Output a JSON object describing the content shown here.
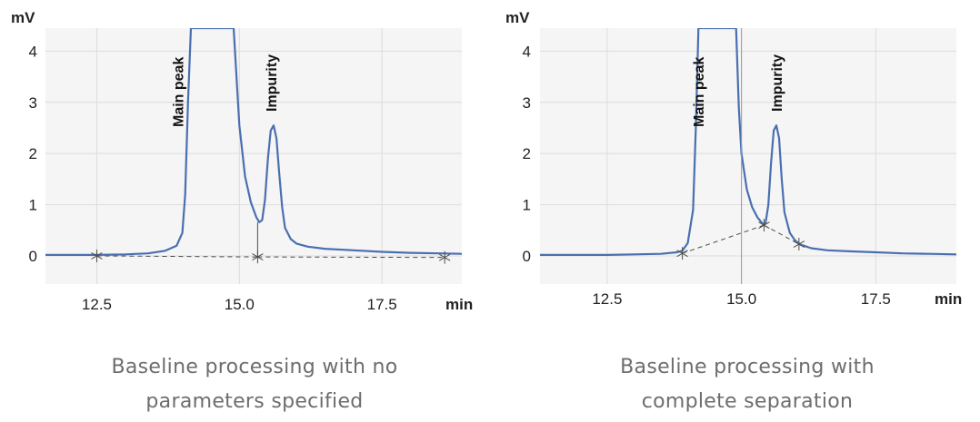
{
  "colors": {
    "plot_background": "#f5f5f5",
    "grid": "#dcdcdc",
    "trace": "#4a6fb0",
    "baseline": "#4d4d4d",
    "axis_text": "#222222",
    "caption_text": "#6d6d6d"
  },
  "chart_data": [
    {
      "type": "line",
      "title": "",
      "ylabel": "mV",
      "xlabel": "min",
      "xlim": [
        11.6,
        18.9
      ],
      "ylim": [
        -0.55,
        4.45
      ],
      "xticks": [
        "12.5",
        "15.0",
        "17.5"
      ],
      "yticks": [
        "0",
        "1",
        "2",
        "3",
        "4"
      ],
      "grid": true,
      "annotations": [
        "Main peak",
        "Impurity"
      ],
      "peaks": {
        "main_peak_time": 14.25,
        "impurity_time": 15.57,
        "impurity_height": 2.55,
        "valley_time": 15.32,
        "valley_height": 0.66
      },
      "baseline_markers": [
        {
          "x": 12.5,
          "y": 0.0
        },
        {
          "x": 15.32,
          "y": -0.02
        },
        {
          "x": 18.6,
          "y": -0.03
        }
      ],
      "series": [
        {
          "x": [
            11.6,
            12.5,
            13.0,
            13.4,
            13.7,
            13.9,
            14.0,
            14.05,
            14.1,
            14.15,
            14.2,
            14.4,
            14.5,
            14.6,
            14.7,
            14.8,
            14.9,
            15.0,
            15.1,
            15.2,
            15.3,
            15.35,
            15.4,
            15.45,
            15.5,
            15.55,
            15.6,
            15.65,
            15.7,
            15.75,
            15.8,
            15.9,
            16.0,
            16.2,
            16.5,
            17.0,
            17.5,
            18.0,
            18.5,
            18.9
          ],
          "y": [
            0.02,
            0.02,
            0.03,
            0.05,
            0.1,
            0.2,
            0.45,
            1.2,
            3.0,
            4.45,
            4.45,
            4.45,
            4.45,
            4.45,
            4.45,
            4.45,
            4.45,
            2.55,
            1.55,
            1.05,
            0.75,
            0.66,
            0.7,
            1.1,
            1.9,
            2.45,
            2.55,
            2.3,
            1.6,
            0.95,
            0.55,
            0.33,
            0.24,
            0.18,
            0.14,
            0.11,
            0.08,
            0.06,
            0.05,
            0.04
          ]
        }
      ]
    },
    {
      "type": "line",
      "title": "",
      "ylabel": "mV",
      "xlabel": "min",
      "xlim": [
        11.25,
        19.0
      ],
      "ylim": [
        -0.55,
        4.45
      ],
      "xticks": [
        "12.5",
        "15.0",
        "17.5"
      ],
      "yticks": [
        "0",
        "1",
        "2",
        "3",
        "4"
      ],
      "grid": true,
      "annotations": [
        "Main peak",
        "Impurity"
      ],
      "peaks": {
        "main_peak_time": 14.55,
        "impurity_time": 15.67,
        "impurity_height": 2.55,
        "valley_time": 15.42,
        "valley_height": 0.6
      },
      "baseline_markers": [
        {
          "x": 13.9,
          "y": 0.05
        },
        {
          "x": 15.42,
          "y": 0.6
        },
        {
          "x": 16.07,
          "y": 0.23
        }
      ],
      "series": [
        {
          "x": [
            11.25,
            12.5,
            13.0,
            13.5,
            13.8,
            13.9,
            14.0,
            14.1,
            14.15,
            14.2,
            14.25,
            14.3,
            14.5,
            14.7,
            14.9,
            14.95,
            15.0,
            15.1,
            15.2,
            15.3,
            15.4,
            15.45,
            15.5,
            15.55,
            15.6,
            15.65,
            15.7,
            15.75,
            15.8,
            15.9,
            16.0,
            16.1,
            16.3,
            16.6,
            17.0,
            17.5,
            18.0,
            18.5,
            19.0
          ],
          "y": [
            0.02,
            0.02,
            0.03,
            0.04,
            0.07,
            0.1,
            0.25,
            0.9,
            2.5,
            4.45,
            4.45,
            4.45,
            4.45,
            4.45,
            4.45,
            2.9,
            2.0,
            1.3,
            0.95,
            0.75,
            0.62,
            0.65,
            1.0,
            1.8,
            2.45,
            2.55,
            2.3,
            1.5,
            0.85,
            0.45,
            0.3,
            0.22,
            0.15,
            0.11,
            0.09,
            0.07,
            0.05,
            0.04,
            0.03
          ]
        }
      ]
    }
  ],
  "captions": [
    {
      "line1": "Baseline processing with no",
      "line2": "parameters specified"
    },
    {
      "line1": "Baseline processing with",
      "line2": "complete separation"
    }
  ]
}
